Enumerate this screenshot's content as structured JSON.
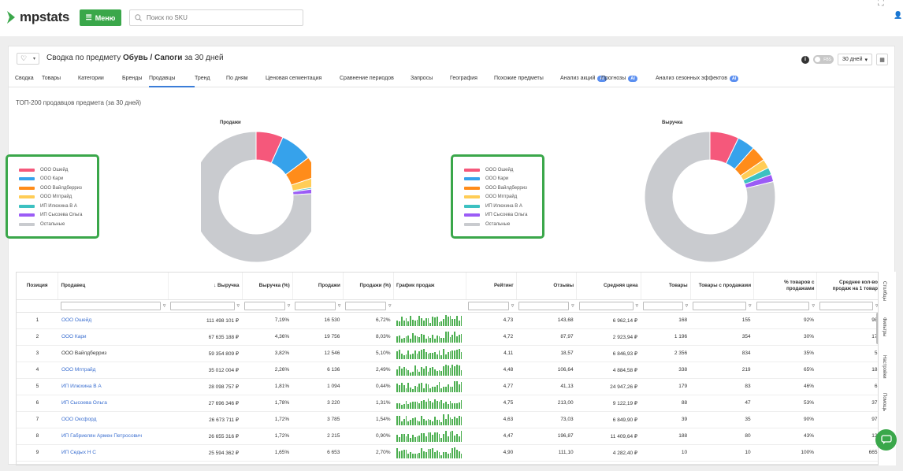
{
  "brand": {
    "name": "mpstats",
    "accent": "#3aa74a"
  },
  "header": {
    "menu_label": "Меню",
    "search_placeholder": "Поиск по SKU"
  },
  "page": {
    "title_prefix": "Сводка по предмету",
    "title_subject": "Обувь / Сапоги",
    "title_suffix": "за 30 дней",
    "fbs_label": "FBS",
    "period_label": "30 дней"
  },
  "tabs": [
    {
      "label": "Сводка"
    },
    {
      "label": "Товары"
    },
    {
      "label": "Категории"
    },
    {
      "label": "Бренды"
    },
    {
      "label": "Продавцы",
      "active": true
    },
    {
      "label": "Тренд"
    },
    {
      "label": "По дням"
    },
    {
      "label": "Ценовая сегментация"
    },
    {
      "label": "Сравнение периодов"
    },
    {
      "label": "Запросы"
    },
    {
      "label": "География"
    },
    {
      "label": "Похожие предметы"
    },
    {
      "label": "Анализ акций",
      "badge": "AI"
    },
    {
      "label": "Прогнозы",
      "badge": "AI"
    },
    {
      "label": "Анализ сезонных эффектов",
      "badge": "AI"
    }
  ],
  "section_title": "ТОП-200 продавцов предмета (за 30 дней)",
  "chart_data": [
    {
      "type": "pie",
      "title": "Продажи",
      "labels": [
        "ООО Ошейд",
        "ООО Кари",
        "ООО Вайлдберриз",
        "ООО Мптрайд",
        "ИП Илюхина В А",
        "ИП Сысоева Ольга",
        "Остальные"
      ],
      "values": [
        6.72,
        8.03,
        5.1,
        2.49,
        0.44,
        1.31,
        75.91
      ],
      "colors": [
        "#f5587b",
        "#36a2eb",
        "#ff8c1a",
        "#ffcd56",
        "#3dc1c1",
        "#9b5cf6",
        "#c9cbcf"
      ]
    },
    {
      "type": "pie",
      "title": "Выручка",
      "labels": [
        "ООО Ошейд",
        "ООО Кари",
        "ООО Вайлдберриз",
        "ООО Мптрайд",
        "ИП Илюхина В А",
        "ИП Сысоева Ольга",
        "Остальные"
      ],
      "values": [
        7.19,
        4.36,
        3.82,
        2.26,
        1.81,
        1.78,
        78.78
      ],
      "colors": [
        "#f5587b",
        "#36a2eb",
        "#ff8c1a",
        "#ffcd56",
        "#3dc1c1",
        "#9b5cf6",
        "#c9cbcf"
      ]
    }
  ],
  "table": {
    "headers": {
      "position": "Позиция",
      "seller": "Продавец",
      "revenue": "↓ Выручка",
      "revenue_pct": "Выручка (%)",
      "sales": "Продажи",
      "sales_pct": "Продажи (%)",
      "graph": "График продаж",
      "rating": "Рейтинг",
      "reviews": "Отзывы",
      "avg_price": "Средняя цена",
      "items": "Товары",
      "items_with_sales": "Товары с продажами",
      "pct_items_sales": "% товаров с продажами",
      "avg_sales_per_item": "Среднее кол-во продаж на 1 товар"
    },
    "rows": [
      {
        "pos": "1",
        "seller": "ООО Ошейд",
        "link": true,
        "revenue": "111 498 101 ₽",
        "revenue_pct": "7,19%",
        "sales": "16 530",
        "sales_pct": "6,72%",
        "rating": "4,73",
        "reviews": "143,68",
        "avg_price": "6 962,14 ₽",
        "items": "168",
        "items_with_sales": "155",
        "pct": "92%",
        "avg": "98"
      },
      {
        "pos": "2",
        "seller": "ООО Кари",
        "link": true,
        "revenue": "67 635 188 ₽",
        "revenue_pct": "4,36%",
        "sales": "19 756",
        "sales_pct": "8,03%",
        "rating": "4,72",
        "reviews": "87,97",
        "avg_price": "2 923,94 ₽",
        "items": "1 196",
        "items_with_sales": "354",
        "pct": "30%",
        "avg": "17"
      },
      {
        "pos": "3",
        "seller": "ООО Вайлдберриз",
        "link": false,
        "revenue": "59 354 809 ₽",
        "revenue_pct": "3,82%",
        "sales": "12 546",
        "sales_pct": "5,10%",
        "rating": "4,11",
        "reviews": "18,57",
        "avg_price": "6 846,93 ₽",
        "items": "2 356",
        "items_with_sales": "834",
        "pct": "35%",
        "avg": "5"
      },
      {
        "pos": "4",
        "seller": "ООО Мптрайд",
        "link": true,
        "revenue": "35 012 004 ₽",
        "revenue_pct": "2,26%",
        "sales": "6 136",
        "sales_pct": "2,49%",
        "rating": "4,48",
        "reviews": "106,64",
        "avg_price": "4 884,58 ₽",
        "items": "338",
        "items_with_sales": "219",
        "pct": "65%",
        "avg": "18"
      },
      {
        "pos": "5",
        "seller": "ИП Илюхина В А",
        "link": true,
        "revenue": "28 098 757 ₽",
        "revenue_pct": "1,81%",
        "sales": "1 094",
        "sales_pct": "0,44%",
        "rating": "4,77",
        "reviews": "41,13",
        "avg_price": "24 947,26 ₽",
        "items": "179",
        "items_with_sales": "83",
        "pct": "46%",
        "avg": "6"
      },
      {
        "pos": "6",
        "seller": "ИП Сысоева Ольга",
        "link": true,
        "revenue": "27 696 346 ₽",
        "revenue_pct": "1,78%",
        "sales": "3 220",
        "sales_pct": "1,31%",
        "rating": "4,75",
        "reviews": "213,00",
        "avg_price": "9 122,19 ₽",
        "items": "88",
        "items_with_sales": "47",
        "pct": "53%",
        "avg": "37"
      },
      {
        "pos": "7",
        "seller": "ООО Оксфорд",
        "link": true,
        "revenue": "26 673 711 ₽",
        "revenue_pct": "1,72%",
        "sales": "3 785",
        "sales_pct": "1,54%",
        "rating": "4,63",
        "reviews": "73,03",
        "avg_price": "6 849,90 ₽",
        "items": "39",
        "items_with_sales": "35",
        "pct": "90%",
        "avg": "97"
      },
      {
        "pos": "8",
        "seller": "ИП Габриелян Армен Петросович",
        "link": true,
        "revenue": "26 655 316 ₽",
        "revenue_pct": "1,72%",
        "sales": "2 215",
        "sales_pct": "0,90%",
        "rating": "4,47",
        "reviews": "196,87",
        "avg_price": "11 409,64 ₽",
        "items": "188",
        "items_with_sales": "80",
        "pct": "43%",
        "avg": "12"
      },
      {
        "pos": "9",
        "seller": "ИП Седых Н С",
        "link": true,
        "revenue": "25 594 362 ₽",
        "revenue_pct": "1,65%",
        "sales": "6 653",
        "sales_pct": "2,70%",
        "rating": "4,90",
        "reviews": "111,10",
        "avg_price": "4 282,40 ₽",
        "items": "10",
        "items_with_sales": "10",
        "pct": "100%",
        "avg": "665"
      }
    ]
  },
  "right_tools": [
    {
      "label": "Столбцы"
    },
    {
      "label": "Фильтры"
    },
    {
      "label": "Настройки"
    },
    {
      "label": "Помощь"
    }
  ]
}
